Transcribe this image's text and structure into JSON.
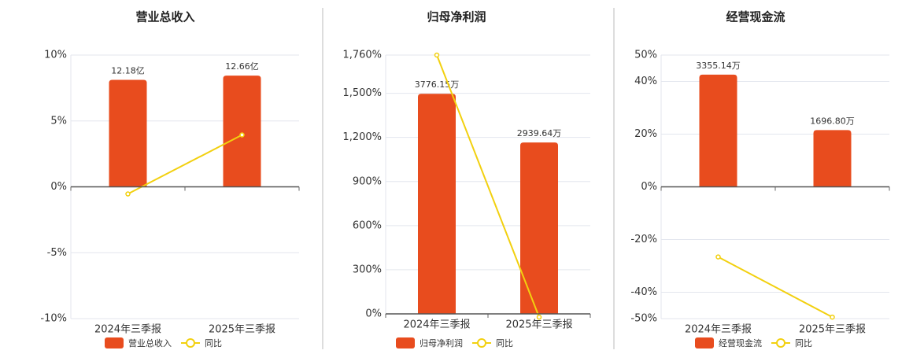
{
  "chart_data": [
    {
      "type": "combo",
      "title": "营业总收入",
      "categories": [
        "2024年三季报",
        "2025年三季报"
      ],
      "series": [
        {
          "name": "营业总收入",
          "type": "bar",
          "color": "#e84c1e",
          "axis": "y2",
          "values": [
            12.18,
            12.66
          ],
          "value_labels": [
            "12.18亿",
            "12.66亿"
          ]
        },
        {
          "name": "同比",
          "type": "line",
          "color": "#f2d00f",
          "values": [
            -0.54,
            3.94
          ]
        }
      ],
      "ylim": [
        -10,
        10
      ],
      "yticks": [
        {
          "value": -10,
          "label": "-10%"
        },
        {
          "value": -5,
          "label": "-5%"
        },
        {
          "value": 0,
          "label": "0%"
        },
        {
          "value": 5,
          "label": "5%"
        },
        {
          "value": 10,
          "label": "10%"
        }
      ],
      "y2lim": [
        -15,
        15
      ],
      "grid": true,
      "legend": "bottom"
    },
    {
      "type": "combo",
      "title": "归母净利润",
      "categories": [
        "2024年三季报",
        "2025年三季报"
      ],
      "series": [
        {
          "name": "归母净利润",
          "type": "bar",
          "color": "#e84c1e",
          "axis": "y2",
          "values": [
            3776.15,
            2939.64
          ],
          "value_labels": [
            "3776.15万",
            "2939.64万"
          ]
        },
        {
          "name": "同比",
          "type": "line",
          "color": "#f2d00f",
          "values": [
            1760,
            -22.15
          ]
        }
      ],
      "ylim": [
        0,
        1760
      ],
      "yticks": [
        {
          "value": 0,
          "label": "0%"
        },
        {
          "value": 300,
          "label": "300%"
        },
        {
          "value": 600,
          "label": "600%"
        },
        {
          "value": 900,
          "label": "900%"
        },
        {
          "value": 1200,
          "label": "1,200%"
        },
        {
          "value": 1500,
          "label": "1,500%"
        },
        {
          "value": 1760,
          "label": "1,760%"
        }
      ],
      "y2lim": [
        0,
        4440
      ],
      "grid": true,
      "legend": "bottom"
    },
    {
      "type": "combo",
      "title": "经营现金流",
      "categories": [
        "2024年三季报",
        "2025年三季报"
      ],
      "series": [
        {
          "name": "经营现金流",
          "type": "bar",
          "color": "#e84c1e",
          "axis": "y2",
          "values": [
            3355.14,
            1696.8
          ],
          "value_labels": [
            "3355.14万",
            "1696.80万"
          ]
        },
        {
          "name": "同比",
          "type": "line",
          "color": "#f2d00f",
          "values": [
            -26.6,
            -49.43
          ]
        }
      ],
      "ylim": [
        -50,
        50
      ],
      "yticks": [
        {
          "value": -50,
          "label": "-50%"
        },
        {
          "value": -40,
          "label": "-40%"
        },
        {
          "value": -20,
          "label": "-20%"
        },
        {
          "value": 0,
          "label": "0%"
        },
        {
          "value": 20,
          "label": "20%"
        },
        {
          "value": 40,
          "label": "40%"
        },
        {
          "value": 50,
          "label": "50%"
        }
      ],
      "y2lim": [
        -3940,
        3940
      ],
      "grid": true,
      "legend": "bottom"
    }
  ]
}
